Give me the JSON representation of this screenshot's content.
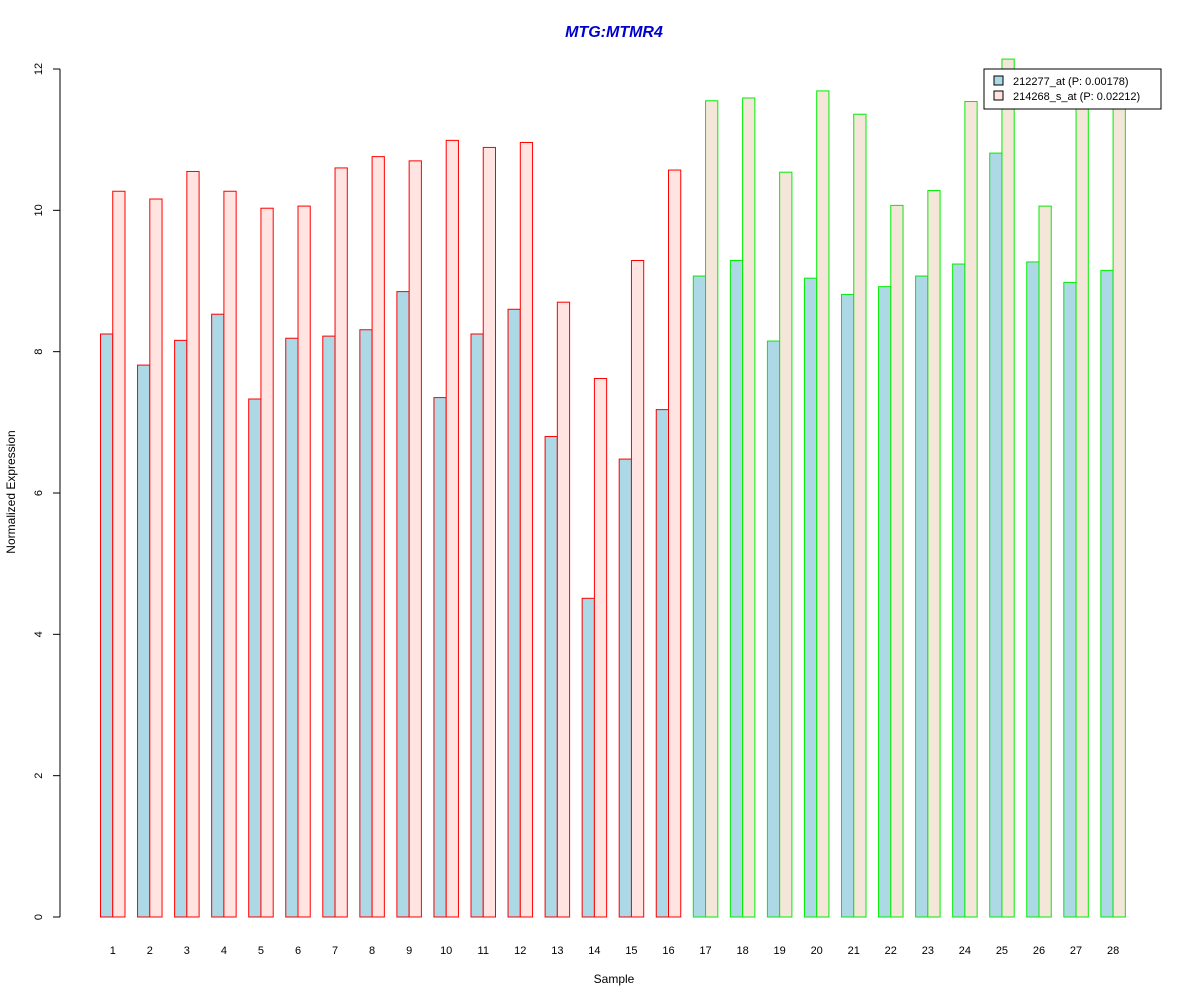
{
  "chart_data": {
    "type": "bar",
    "title": "MTG:MTMR4",
    "xlabel": "Sample",
    "ylabel": "Normalized Expression",
    "ylim": [
      0,
      12
    ],
    "yticks": [
      "0",
      "2",
      "4",
      "6",
      "8",
      "10",
      "12"
    ],
    "categories": [
      "1",
      "2",
      "3",
      "4",
      "5",
      "6",
      "7",
      "8",
      "9",
      "10",
      "11",
      "12",
      "13",
      "14",
      "15",
      "16",
      "17",
      "18",
      "19",
      "20",
      "21",
      "22",
      "23",
      "24",
      "25",
      "26",
      "27",
      "28"
    ],
    "series": [
      {
        "name": "212277_at (P: 0.00178)",
        "values": [
          8.25,
          7.81,
          8.16,
          8.53,
          7.33,
          8.19,
          8.22,
          8.31,
          8.85,
          7.35,
          8.25,
          8.6,
          6.8,
          4.51,
          6.48,
          7.18,
          9.07,
          9.29,
          8.15,
          9.04,
          8.81,
          8.92,
          9.07,
          9.24,
          10.81,
          9.27,
          8.98,
          9.15
        ]
      },
      {
        "name": "214268_s_at (P: 0.02212)",
        "values": [
          10.27,
          10.16,
          10.55,
          10.27,
          10.03,
          10.06,
          10.6,
          10.76,
          10.7,
          10.99,
          10.89,
          10.96,
          8.7,
          7.62,
          9.29,
          10.57,
          11.55,
          11.59,
          10.54,
          11.69,
          11.36,
          10.07,
          10.28,
          11.54,
          12.14,
          10.06,
          11.6,
          11.6
        ]
      }
    ],
    "groups": [
      {
        "samples": [
          1,
          16
        ],
        "border_color": "#ff0000"
      },
      {
        "samples": [
          17,
          28
        ],
        "border_color": "#00ee00"
      }
    ],
    "colors": {
      "title": "#0000cc",
      "series1_fill": "#add8e6",
      "series2_fill": "#ffe4e1",
      "group2_series2_fill": "#f5e6da"
    },
    "legend": {
      "position": "top-right"
    },
    "grid": false
  }
}
